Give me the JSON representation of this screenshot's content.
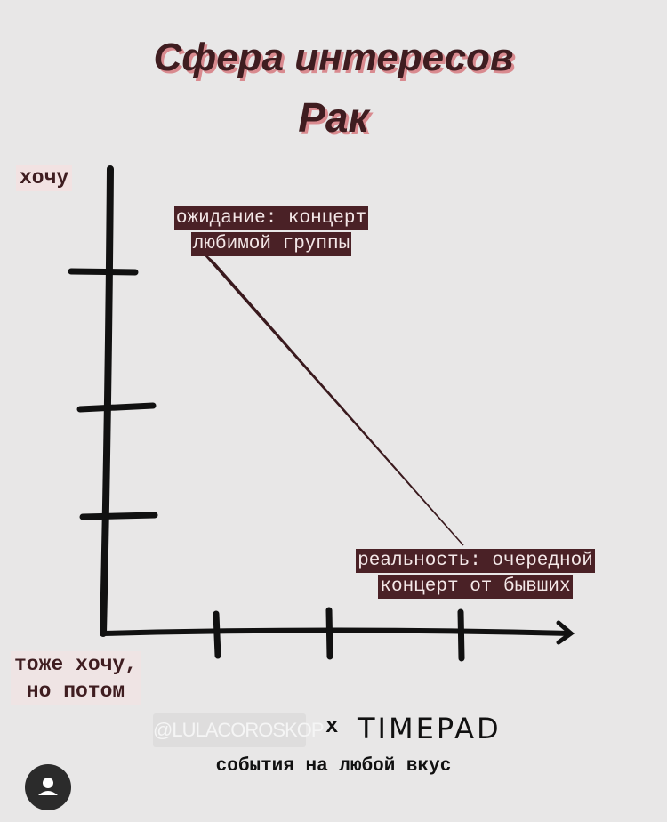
{
  "title": {
    "line1": "Сфера интересов",
    "line2": "Рак"
  },
  "axes": {
    "y_top_label": "хочу",
    "origin_label_line1": "тоже хочу,",
    "origin_label_line2": "но потом"
  },
  "callouts": [
    {
      "line1": "ожидание: концерт",
      "line2": "любимой группы"
    },
    {
      "line1": "реальность: очередной",
      "line2": "концерт от бывших"
    }
  ],
  "footer": {
    "handle": "@LULACOROSKOP",
    "cross": "x",
    "brand": "TIMEPAD",
    "tagline": "события на любой вкус"
  },
  "colors": {
    "title": "#3f1d20",
    "title_shadow": "#d98a8f",
    "callout_bg": "#4a2126",
    "background": "#e8e7e7"
  },
  "icons": {
    "avatar": "user-avatar-icon"
  }
}
